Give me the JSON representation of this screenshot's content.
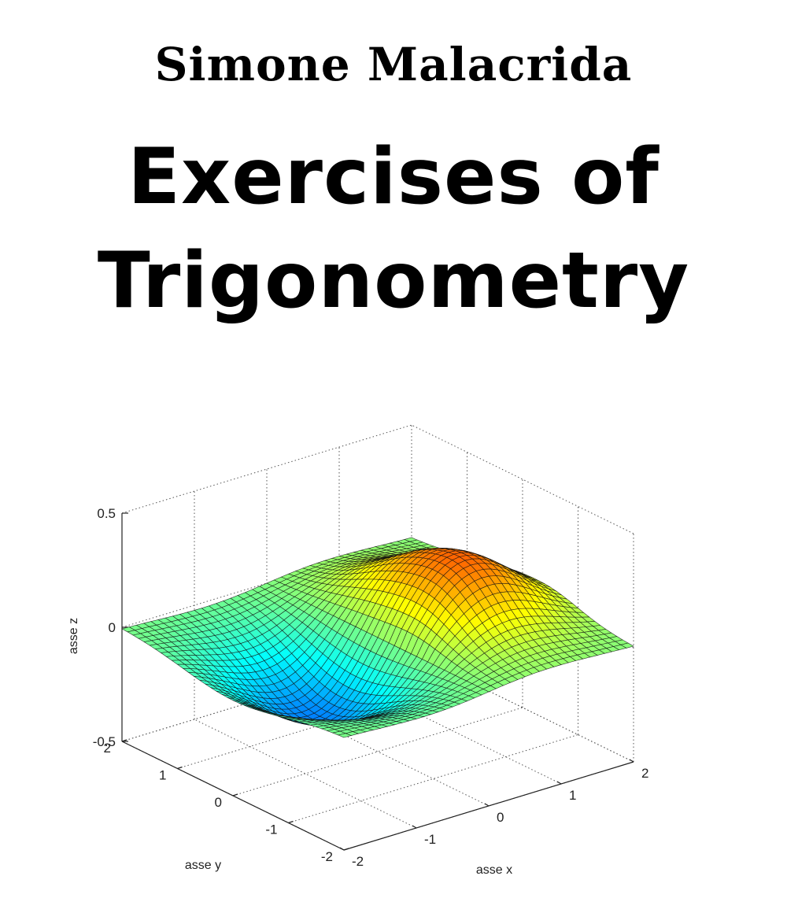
{
  "cover": {
    "author": "Simone Malacrida",
    "title_line1": "Exercises of",
    "title_line2": "Trigonometry"
  },
  "chart_data": {
    "type": "surface3d",
    "xlabel": "asse x",
    "ylabel": "asse y",
    "zlabel": "asse z",
    "xlim": [
      -2,
      2
    ],
    "ylim": [
      -2,
      2
    ],
    "zlim": [
      -0.5,
      0.5
    ],
    "x_ticks": [
      "-2",
      "-1",
      "0",
      "1",
      "2"
    ],
    "y_ticks": [
      "-2",
      "-1",
      "0",
      "1",
      "2"
    ],
    "z_ticks": [
      "-0.5",
      "0",
      "0.5"
    ],
    "grid": true,
    "colormap": "jet",
    "surface_color_top": "#7a0000",
    "surface_color_bottom": "#00008f"
  }
}
